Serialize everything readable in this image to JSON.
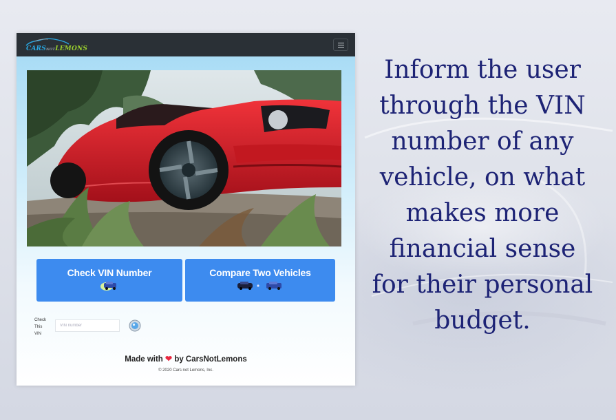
{
  "app": {
    "logo": {
      "part1": "CARS",
      "part2": "NOT",
      "part3": "LEMONS"
    },
    "hero_image": "red-sports-car-photo",
    "buttons": {
      "check_vin": {
        "label": "Check VIN Number",
        "icon": "car-icon"
      },
      "compare": {
        "label": "Compare Two Vehicles",
        "icon": "two-cars-icon"
      }
    },
    "vin_form": {
      "label": "Check This VIN",
      "placeholder": "VIN number",
      "value": ""
    },
    "footer": {
      "made_with_prefix": "Made with",
      "heart": "❤",
      "made_with_suffix": "by CarsNotLemons",
      "copyright": "© 2020 Cars not Lemons, Inc."
    }
  },
  "caption": "Inform the user through the VIN number of any vehicle, on what makes more financial sense for their personal budget.",
  "colors": {
    "navbar": "#2a3036",
    "button": "#3d8bef",
    "caption": "#1d2375",
    "heart": "#e8273f"
  }
}
